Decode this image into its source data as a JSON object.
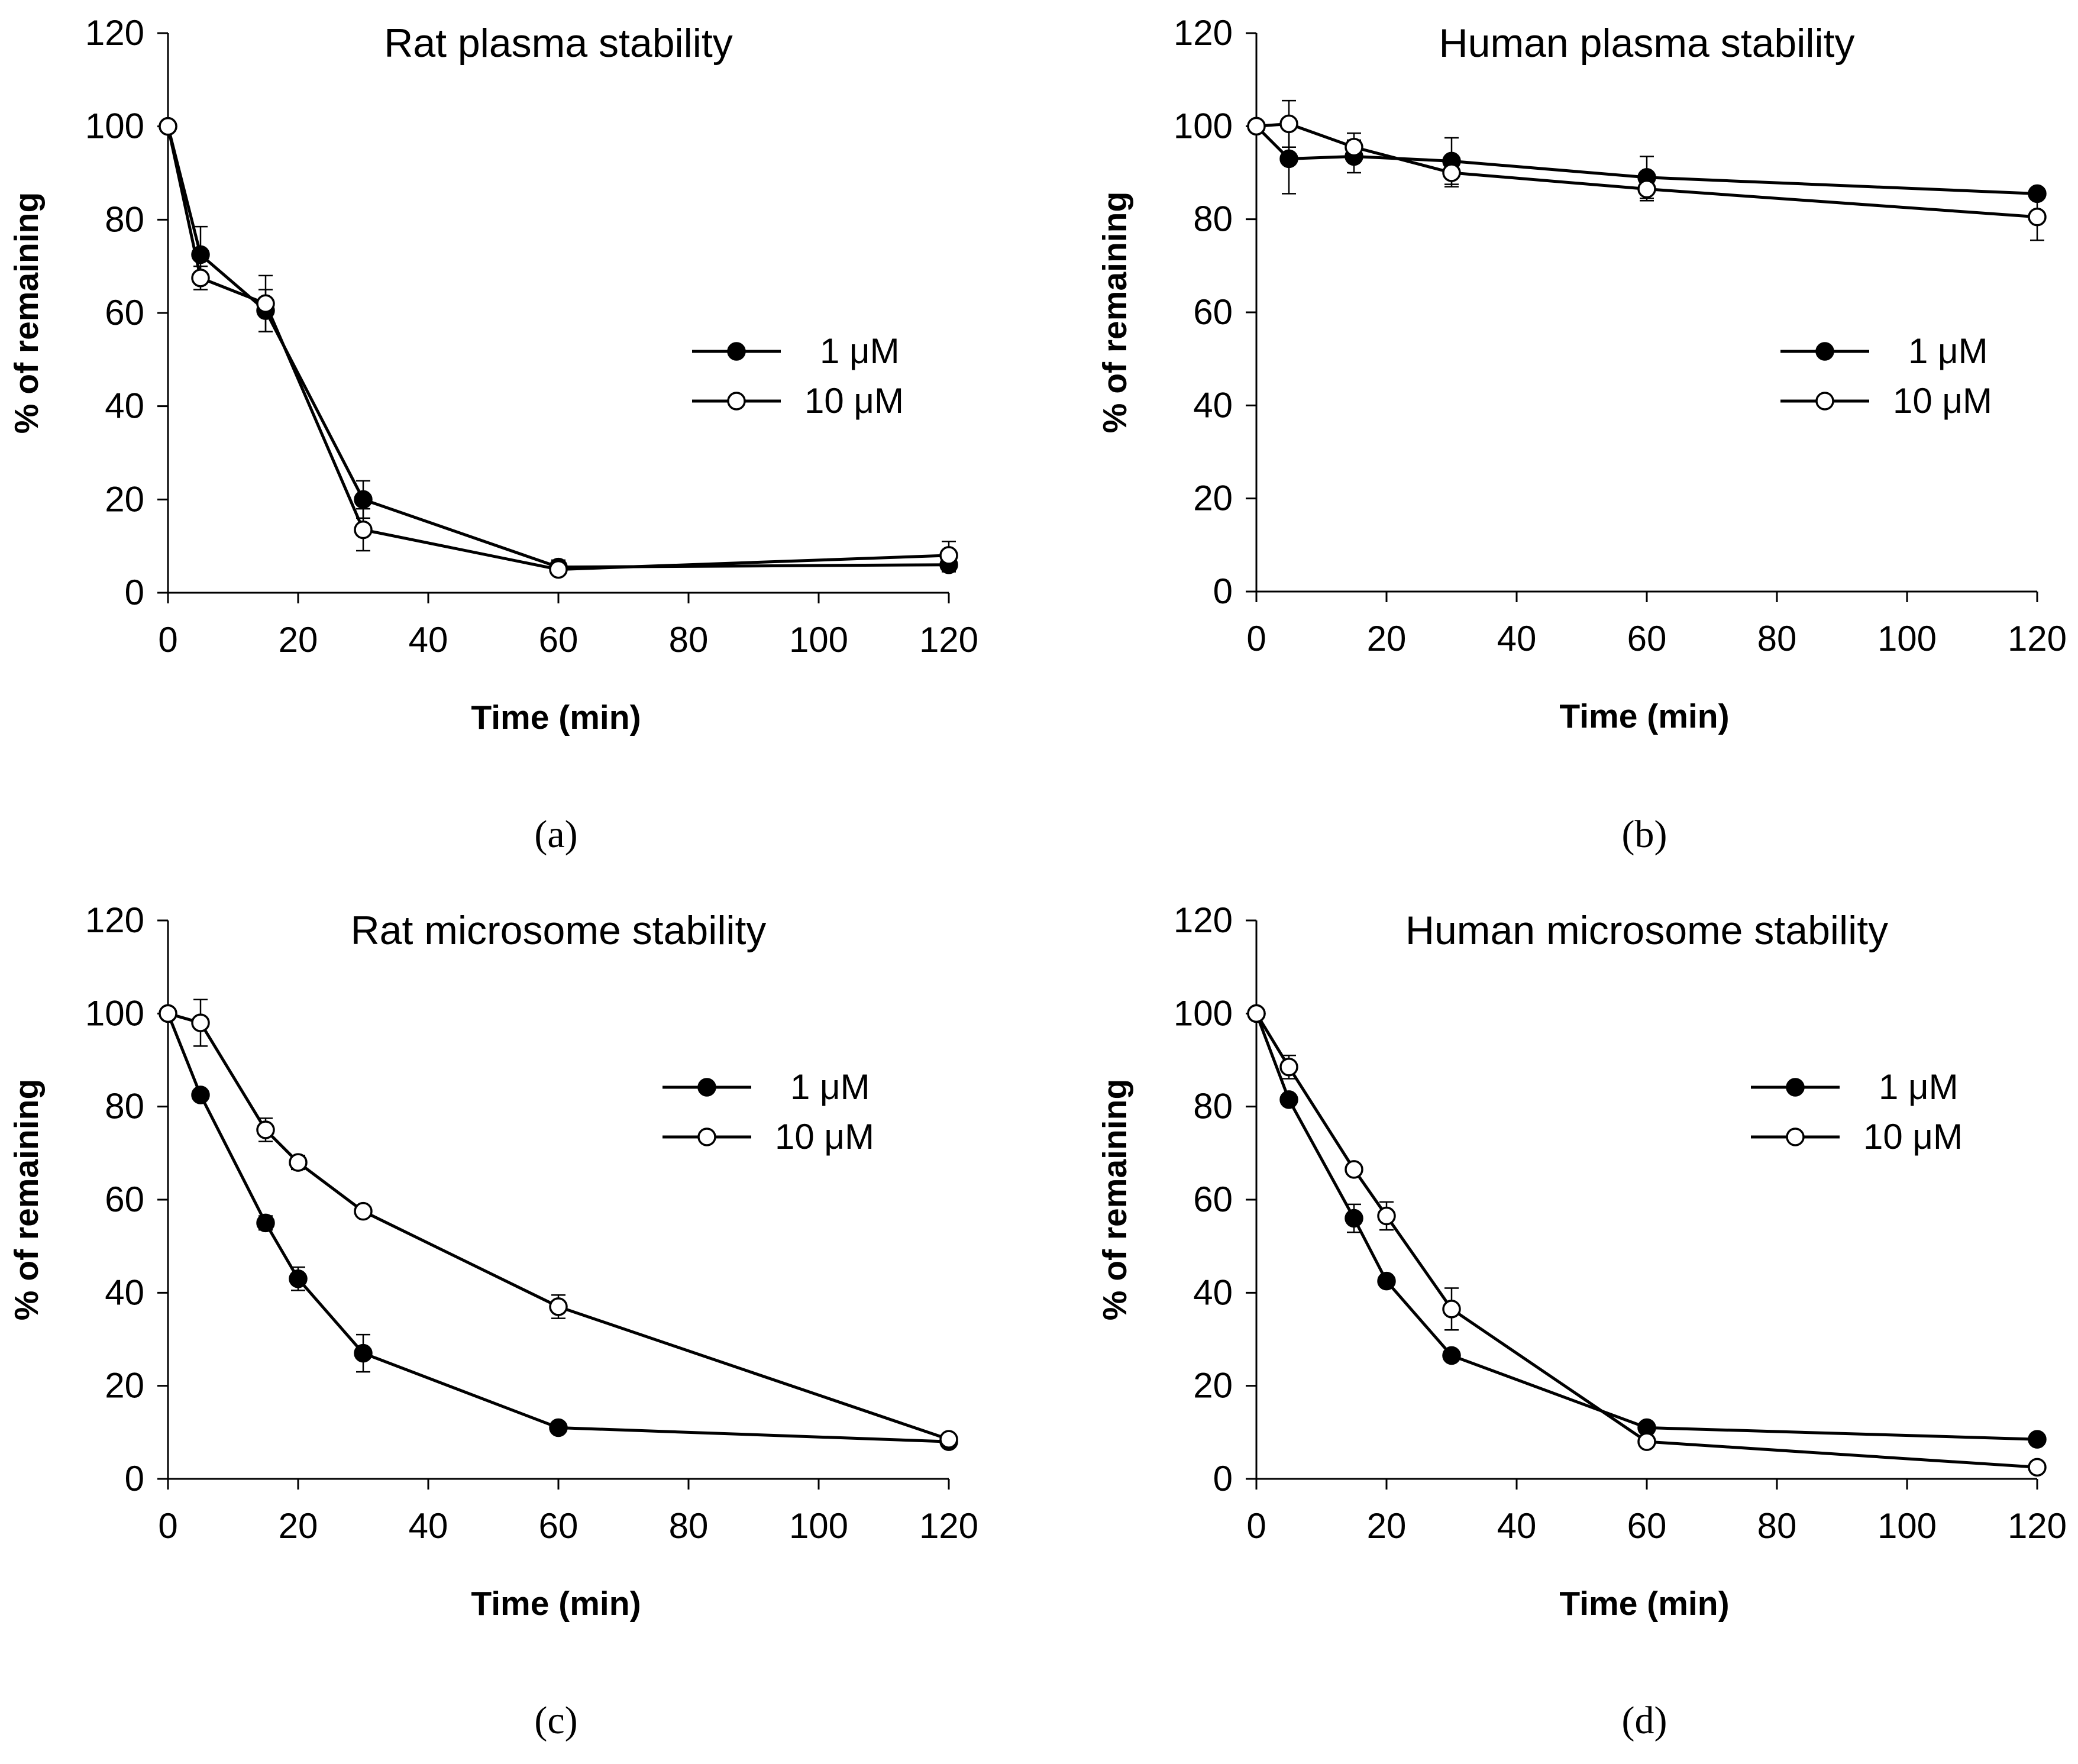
{
  "colors": {
    "line": "#000000",
    "filled_marker": "#000000",
    "open_marker_fill": "#ffffff",
    "background": "#ffffff"
  },
  "chart_data": [
    {
      "type": "line",
      "panel_label": "(a)",
      "title": "Rat plasma stability",
      "xlabel": "Time (min)",
      "ylabel": "% of remaining",
      "xlim": [
        0,
        120
      ],
      "ylim": [
        0,
        120
      ],
      "x_ticks": [
        0,
        20,
        40,
        60,
        80,
        100,
        120
      ],
      "y_ticks": [
        0,
        20,
        40,
        60,
        80,
        100,
        120
      ],
      "legend_position": "right",
      "series": [
        {
          "name": "1 μM",
          "marker": "filled-circle",
          "x": [
            0,
            5,
            15,
            30,
            60,
            120
          ],
          "y": [
            100,
            72.5,
            60.5,
            20,
            5.5,
            6
          ],
          "err": [
            0,
            6,
            4.5,
            4,
            1.5,
            1.5
          ]
        },
        {
          "name": "10 μM",
          "marker": "open-circle",
          "x": [
            0,
            5,
            15,
            30,
            60,
            120
          ],
          "y": [
            100,
            67.5,
            62,
            13.5,
            5,
            8
          ],
          "err": [
            0,
            2.5,
            6,
            4.5,
            1,
            3
          ]
        }
      ]
    },
    {
      "type": "line",
      "panel_label": "(b)",
      "title": "Human plasma stability",
      "xlabel": "Time (min)",
      "ylabel": "% of remaining",
      "xlim": [
        0,
        120
      ],
      "ylim": [
        0,
        120
      ],
      "x_ticks": [
        0,
        20,
        40,
        60,
        80,
        100,
        120
      ],
      "y_ticks": [
        0,
        20,
        40,
        60,
        80,
        100,
        120
      ],
      "legend_position": "right",
      "series": [
        {
          "name": "1 μM",
          "marker": "filled-circle",
          "x": [
            0,
            5,
            15,
            30,
            60,
            120
          ],
          "y": [
            100,
            93,
            93.5,
            92.5,
            89,
            85.5
          ],
          "err": [
            0,
            7.5,
            3.5,
            5,
            4.5,
            1
          ]
        },
        {
          "name": "10 μM",
          "marker": "open-circle",
          "x": [
            0,
            5,
            15,
            30,
            60,
            120
          ],
          "y": [
            100,
            100.5,
            95.5,
            90,
            86.5,
            80.5
          ],
          "err": [
            0,
            5,
            3,
            3,
            2.5,
            5
          ]
        }
      ]
    },
    {
      "type": "line",
      "panel_label": "(c)",
      "title": "Rat microsome stability",
      "xlabel": "Time (min)",
      "ylabel": "% of remaining",
      "xlim": [
        0,
        120
      ],
      "ylim": [
        0,
        120
      ],
      "x_ticks": [
        0,
        20,
        40,
        60,
        80,
        100,
        120
      ],
      "y_ticks": [
        0,
        20,
        40,
        60,
        80,
        100,
        120
      ],
      "legend_position": "right",
      "series": [
        {
          "name": "1 μM",
          "marker": "filled-circle",
          "x": [
            0,
            5,
            15,
            20,
            30,
            60,
            120
          ],
          "y": [
            100,
            82.5,
            55,
            43,
            27,
            11,
            8
          ],
          "err": [
            0,
            1,
            1.5,
            2.5,
            4,
            1,
            1
          ]
        },
        {
          "name": "10 μM",
          "marker": "open-circle",
          "x": [
            0,
            5,
            15,
            20,
            30,
            60,
            120
          ],
          "y": [
            100,
            98,
            75,
            68,
            57.5,
            37,
            8.5
          ],
          "err": [
            0,
            5,
            2.5,
            1.5,
            1,
            2.5,
            1
          ]
        }
      ]
    },
    {
      "type": "line",
      "panel_label": "(d)",
      "title": "Human microsome stability",
      "xlabel": "Time (min)",
      "ylabel": "% of remaining",
      "xlim": [
        0,
        120
      ],
      "ylim": [
        0,
        120
      ],
      "x_ticks": [
        0,
        20,
        40,
        60,
        80,
        100,
        120
      ],
      "y_ticks": [
        0,
        20,
        40,
        60,
        80,
        100,
        120
      ],
      "legend_position": "right",
      "series": [
        {
          "name": "1 μM",
          "marker": "filled-circle",
          "x": [
            0,
            5,
            15,
            20,
            30,
            60,
            120
          ],
          "y": [
            100,
            81.5,
            56,
            42.5,
            26.5,
            11,
            8.5
          ],
          "err": [
            0,
            1,
            3,
            1,
            1,
            1,
            1
          ]
        },
        {
          "name": "10 μM",
          "marker": "open-circle",
          "x": [
            0,
            5,
            15,
            20,
            30,
            60,
            120
          ],
          "y": [
            100,
            88.5,
            66.5,
            56.5,
            36.5,
            8,
            2.5
          ],
          "err": [
            0,
            2.5,
            1,
            3,
            4.5,
            1,
            0.5
          ]
        }
      ]
    }
  ]
}
